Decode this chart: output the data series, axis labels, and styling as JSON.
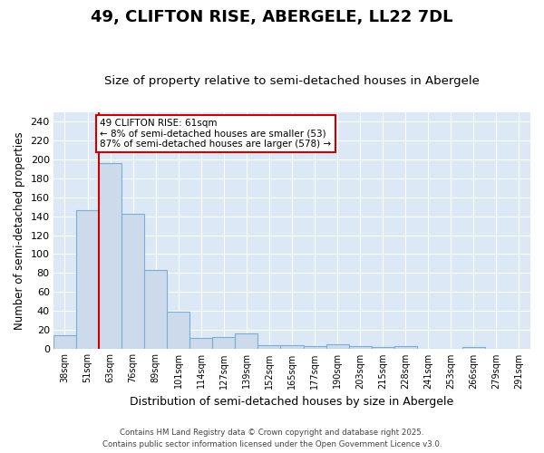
{
  "title": "49, CLIFTON RISE, ABERGELE, LL22 7DL",
  "subtitle": "Size of property relative to semi-detached houses in Abergele",
  "xlabel": "Distribution of semi-detached houses by size in Abergele",
  "ylabel": "Number of semi-detached properties",
  "categories": [
    "38sqm",
    "51sqm",
    "63sqm",
    "76sqm",
    "89sqm",
    "101sqm",
    "114sqm",
    "127sqm",
    "139sqm",
    "152sqm",
    "165sqm",
    "177sqm",
    "190sqm",
    "203sqm",
    "215sqm",
    "228sqm",
    "241sqm",
    "253sqm",
    "266sqm",
    "279sqm",
    "291sqm"
  ],
  "values": [
    14,
    146,
    196,
    143,
    83,
    39,
    12,
    13,
    16,
    4,
    4,
    3,
    5,
    3,
    2,
    3,
    0,
    0,
    2,
    0,
    0
  ],
  "bar_color": "#ccdaec",
  "bar_edge_color": "#7aafd4",
  "red_line_x": 1.5,
  "annotation_title": "49 CLIFTON RISE: 61sqm",
  "annotation_line1": "← 8% of semi-detached houses are smaller (53)",
  "annotation_line2": "87% of semi-detached houses are larger (578) →",
  "annotation_box_color": "#ffffff",
  "annotation_box_edge": "#cc0000",
  "red_line_color": "#cc0000",
  "plot_bg_color": "#dce8f5",
  "fig_bg_color": "#ffffff",
  "grid_color": "#ffffff",
  "ylim": [
    0,
    250
  ],
  "yticks": [
    0,
    20,
    40,
    60,
    80,
    100,
    120,
    140,
    160,
    180,
    200,
    220,
    240
  ],
  "title_fontsize": 13,
  "subtitle_fontsize": 9.5,
  "footer1": "Contains HM Land Registry data © Crown copyright and database right 2025.",
  "footer2": "Contains public sector information licensed under the Open Government Licence v3.0."
}
